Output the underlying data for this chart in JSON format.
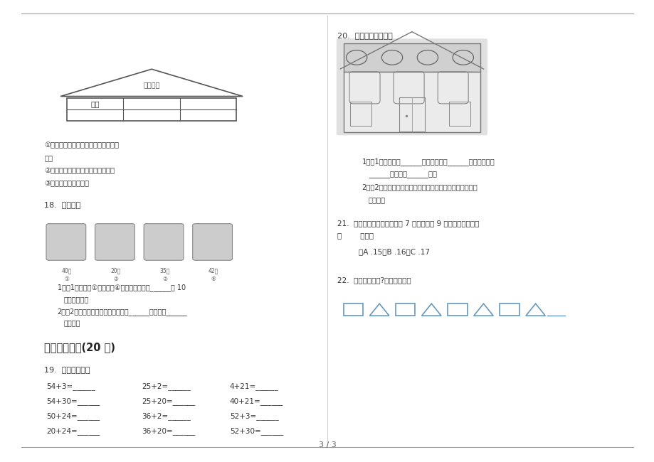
{
  "bg_color": "#ffffff",
  "text_color": "#333333",
  "title": "3 / 3",
  "left_column": {
    "clues": [
      "①小羊的右边是小鸡，小鸡的下面是小",
      "猫。",
      "②小猫的左边是小兔，右边是小马。",
      "③小马的上面是小牛。"
    ],
    "q18_label": "18.  买衣服。",
    "q18_items": [
      "1．（1）妈妈买①号上衣和④号裤子，需要带______张 10",
      "元的人民币。",
      "2．（2）要买一套衣服最便宜的是买______号上衣和______",
      "号裤子。"
    ],
    "section_header": "三、应用练习(20 分)",
    "q19_label": "19.  直接写结果。",
    "math_rows": [
      [
        "54+3=______",
        "25+2=______",
        "4+21=______"
      ],
      [
        "54+30=______",
        "25+20=______",
        "40+21=______"
      ],
      [
        "50+24=______",
        "36+2=______",
        "52+3=______"
      ],
      [
        "20+24=______",
        "36+20=______",
        "52+30=______"
      ]
    ]
  },
  "right_column": {
    "q20_label": "20.  填一填，涂一涂。",
    "q20_items": [
      "1．（1）三角形有______个，正方形有______个，长方形有",
      "______个，圆有______个。",
      "2．（2）三角形涂红色，正方形涂黄色，长方形涂绿色，圆",
      "涂黑色。"
    ],
    "q21_label": "21.  合唱排练时，淘气左边有 7 人，右边有 9 人。这一排一共有",
    "q21_label2": "（        ）人。",
    "q21_choices": "　A .15　B .16　C .17",
    "q22_label": "22.  接下来画什么?请你圈一圈。"
  }
}
